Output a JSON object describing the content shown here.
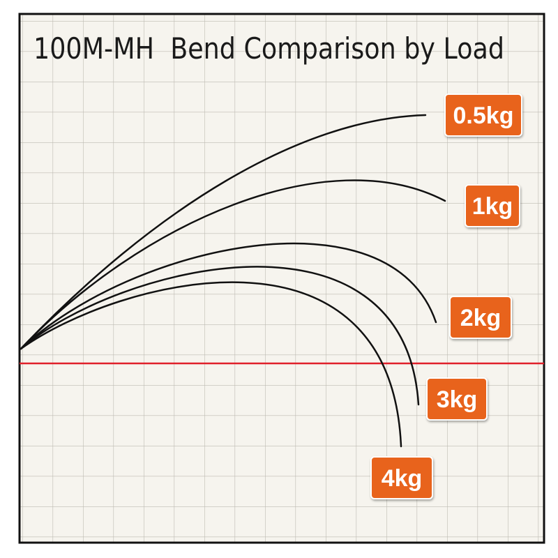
{
  "title": "100M-MH  Bend Comparison by Load",
  "curves": [
    {
      "label": "0.5kg"
    },
    {
      "label": "1kg"
    },
    {
      "label": "2kg"
    },
    {
      "label": "3kg"
    },
    {
      "label": "4kg"
    }
  ]
}
